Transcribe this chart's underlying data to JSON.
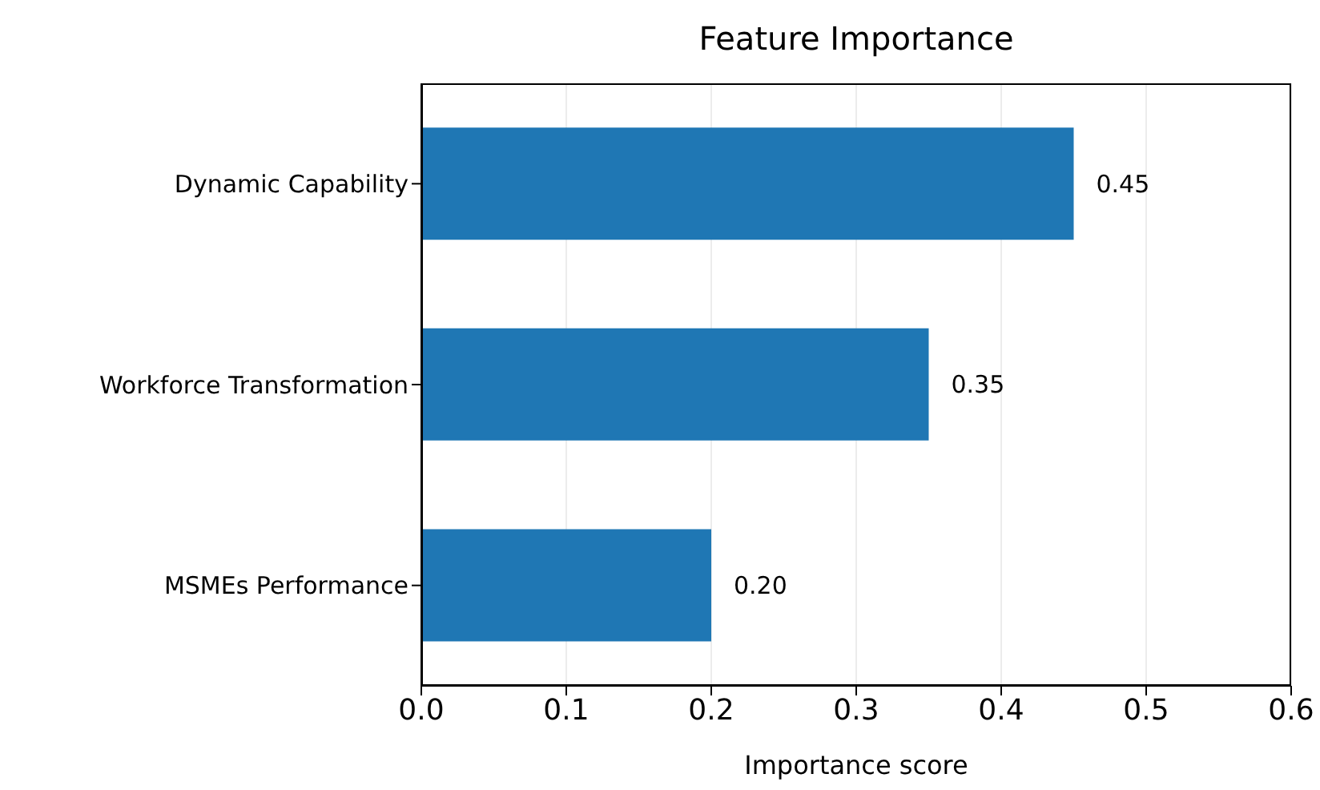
{
  "chart_data": {
    "type": "bar",
    "orientation": "horizontal",
    "title": "Feature Importance",
    "xlabel": "Importance score",
    "categories": [
      "Dynamic Capability",
      "Workforce Transformation",
      "MSMEs Performance"
    ],
    "values": [
      0.45,
      0.35,
      0.2
    ],
    "value_labels": [
      "0.45",
      "0.35",
      "0.20"
    ],
    "color": "#1f77b4",
    "xlim": [
      0,
      0.6
    ],
    "xticks": [
      {
        "value": 0,
        "label": "0.0"
      },
      0.1,
      0.2,
      0.3,
      0.4,
      0.5,
      0.6
    ],
    "grid": "x"
  }
}
